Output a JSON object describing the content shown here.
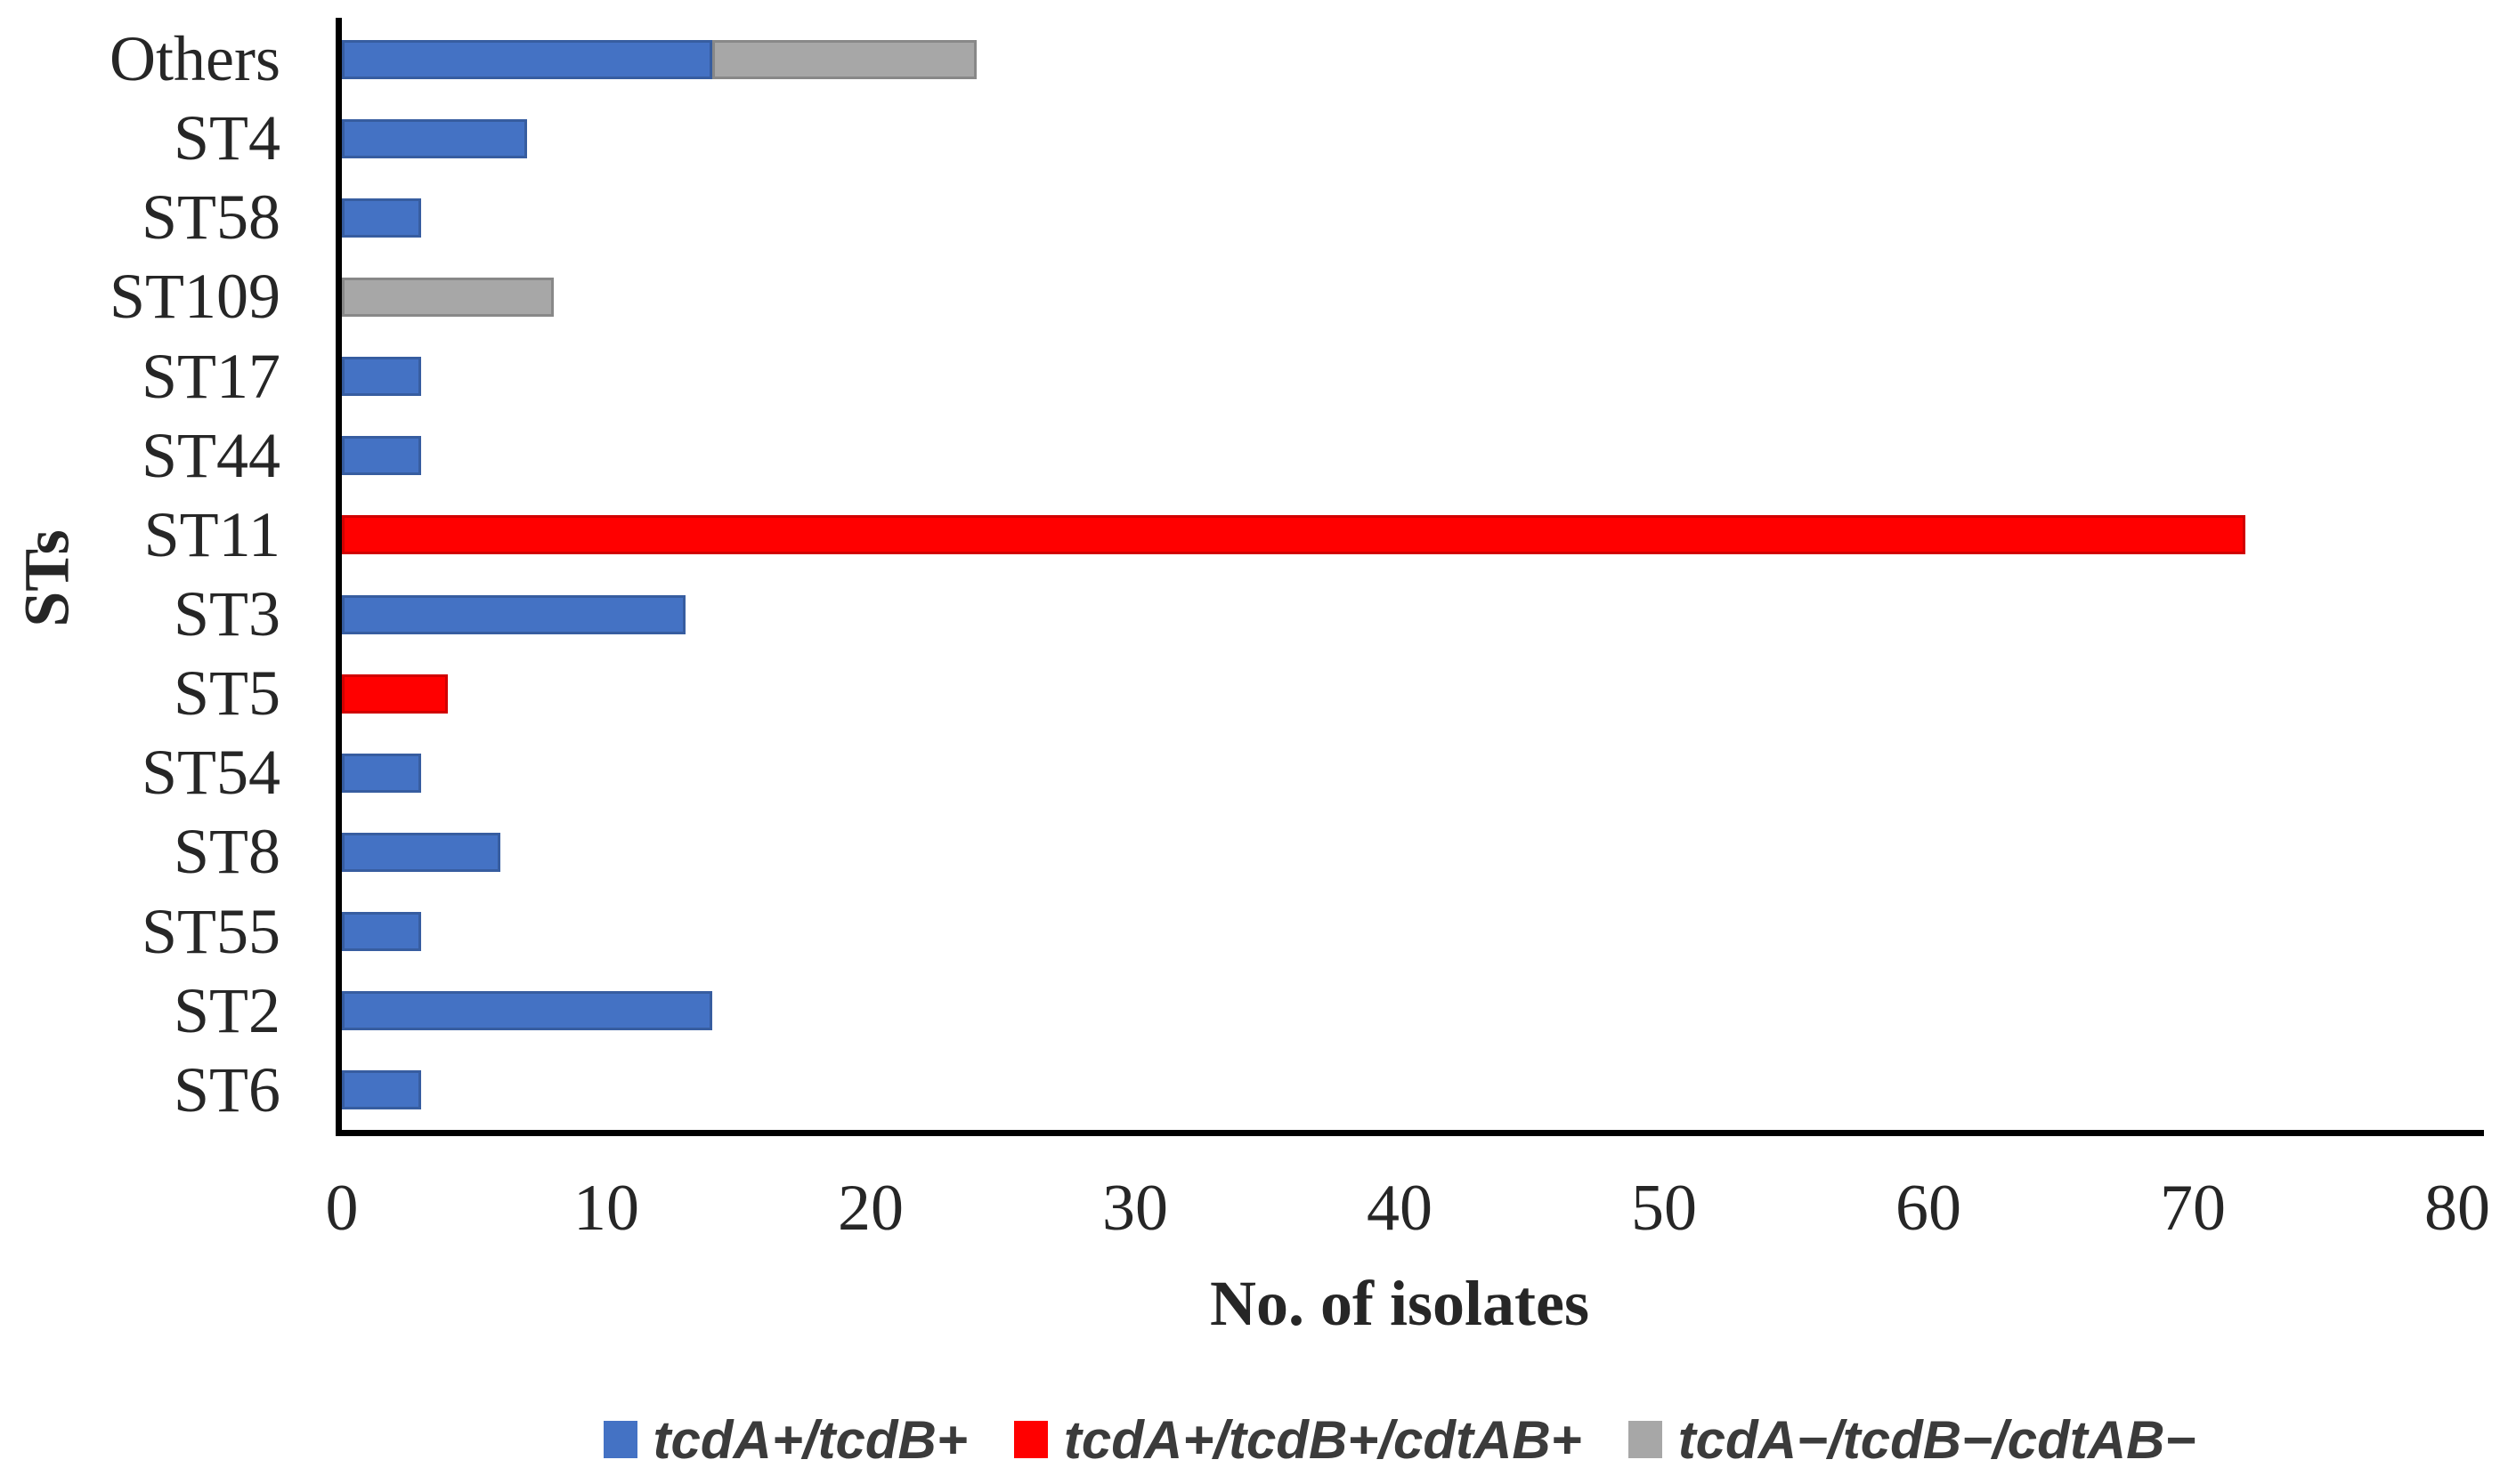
{
  "chart_data": {
    "type": "bar",
    "orientation": "horizontal",
    "stacked": true,
    "title": "",
    "xlabel": "No. of isolates",
    "ylabel": "STs",
    "xlim": [
      0,
      80
    ],
    "xticks": [
      "0",
      "10",
      "20",
      "30",
      "40",
      "50",
      "60",
      "70",
      "80"
    ],
    "grid": false,
    "legend_position": "bottom",
    "categories": [
      "Others",
      "ST4",
      "ST58",
      "ST109",
      "ST17",
      "ST44",
      "ST11",
      "ST3",
      "ST5",
      "ST54",
      "ST8",
      "ST55",
      "ST2",
      "ST6"
    ],
    "series": [
      {
        "name": "tcdA+/tcdB+",
        "color": "#4472C4",
        "values": [
          14,
          7,
          3,
          0,
          3,
          3,
          0,
          13,
          0,
          3,
          6,
          3,
          14,
          3
        ]
      },
      {
        "name": "tcdA+/tcdB+/cdtAB+",
        "color": "#FF0000",
        "values": [
          0,
          0,
          0,
          0,
          0,
          0,
          72,
          0,
          4,
          0,
          0,
          0,
          0,
          0
        ]
      },
      {
        "name": "tcdA−/tcdB−/cdtAB−",
        "color": "#A7A7A7",
        "values": [
          10,
          0,
          0,
          8,
          0,
          0,
          0,
          0,
          0,
          0,
          0,
          0,
          0,
          0
        ]
      }
    ],
    "colors": {
      "axis": "#000000",
      "text": "#262626",
      "legend_text": "#3b3b3b"
    }
  }
}
